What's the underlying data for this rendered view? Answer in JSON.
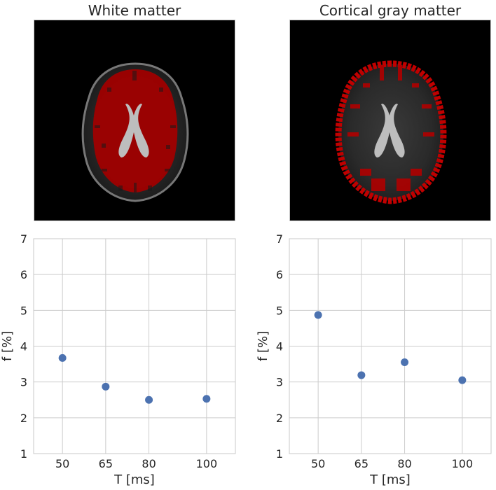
{
  "chart_data": [
    {
      "type": "image",
      "title": "White matter",
      "overlay": "white-matter-mask",
      "overlay_color": "#a00000"
    },
    {
      "type": "image",
      "title": "Cortical gray matter",
      "overlay": "cortical-gray-matter-mask",
      "overlay_color": "#c00000"
    },
    {
      "type": "scatter",
      "x": [
        50,
        65,
        80,
        100
      ],
      "y": [
        3.67,
        2.87,
        2.5,
        2.53
      ],
      "x_ticks": [
        50,
        65,
        80,
        100
      ],
      "y_ticks": [
        1,
        2,
        3,
        4,
        5,
        6,
        7
      ],
      "xlabel": "T [ms]",
      "ylabel": "f [%]",
      "xlim": [
        40,
        110
      ],
      "ylim": [
        1,
        7
      ],
      "grid": true,
      "marker_color": "#4c72b0"
    },
    {
      "type": "scatter",
      "x": [
        50,
        65,
        80,
        100
      ],
      "y": [
        4.87,
        3.19,
        3.55,
        3.05
      ],
      "x_ticks": [
        50,
        65,
        80,
        100
      ],
      "y_ticks": [
        1,
        2,
        3,
        4,
        5,
        6,
        7
      ],
      "xlabel": "T [ms]",
      "ylabel": "f [%]",
      "xlim": [
        40,
        110
      ],
      "ylim": [
        1,
        7
      ],
      "grid": true,
      "marker_color": "#4c72b0"
    }
  ]
}
